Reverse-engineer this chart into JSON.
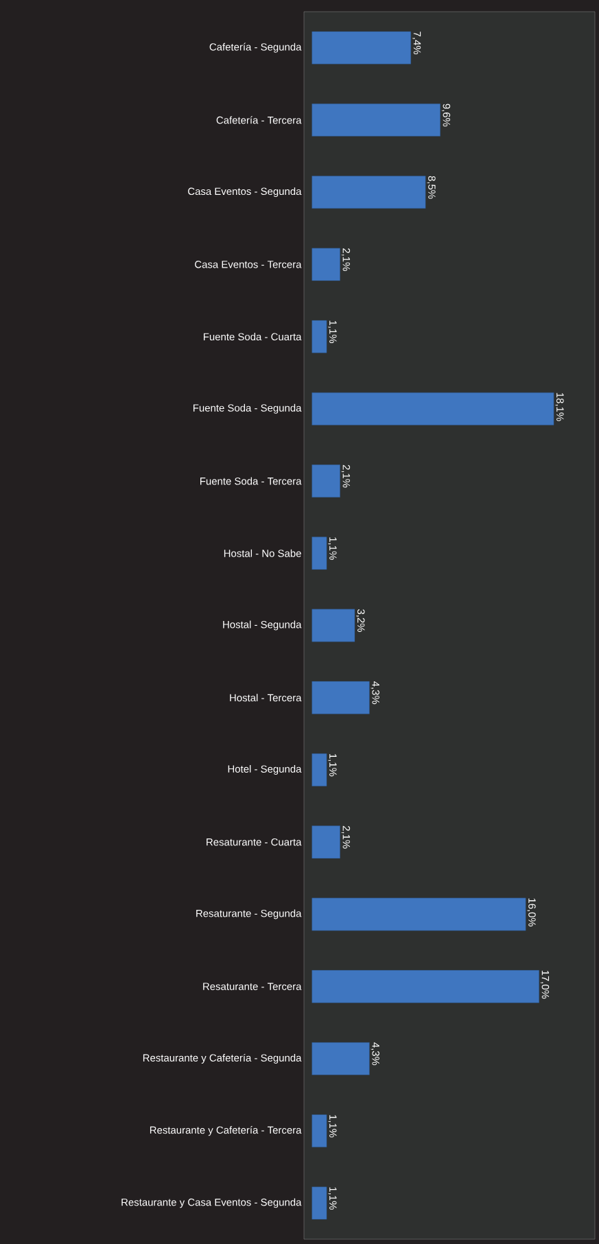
{
  "chart_data": {
    "type": "bar",
    "orientation": "horizontal",
    "color": "#3f76c0",
    "categories": [
      "Cafetería - Segunda",
      "Cafetería - Tercera",
      "Casa Eventos - Segunda",
      "Casa Eventos - Tercera",
      "Fuente Soda - Cuarta",
      "Fuente Soda - Segunda",
      "Fuente Soda - Tercera",
      "Hostal - No Sabe",
      "Hostal - Segunda",
      "Hostal - Tercera",
      "Hotel - Segunda",
      "Resaturante - Cuarta",
      "Resaturante - Segunda",
      "Resaturante - Tercera",
      "Restaurante y Cafetería - Segunda",
      "Restaurante y Cafetería - Tercera",
      "Restaurante y Casa Eventos - Segunda"
    ],
    "values": [
      7.4,
      9.6,
      8.5,
      2.1,
      1.1,
      18.1,
      2.1,
      1.1,
      3.2,
      4.3,
      1.1,
      2.1,
      16.0,
      17.0,
      4.3,
      1.1,
      1.1
    ],
    "value_labels": [
      "7,4%",
      "9,6%",
      "8,5%",
      "2,1%",
      "1,1%",
      "18,1%",
      "2,1%",
      "1,1%",
      "3,2%",
      "4,3%",
      "1,1%",
      "2,1%",
      "16,0%",
      "17,0%",
      "4,3%",
      "1,1%",
      "1,1%"
    ]
  }
}
